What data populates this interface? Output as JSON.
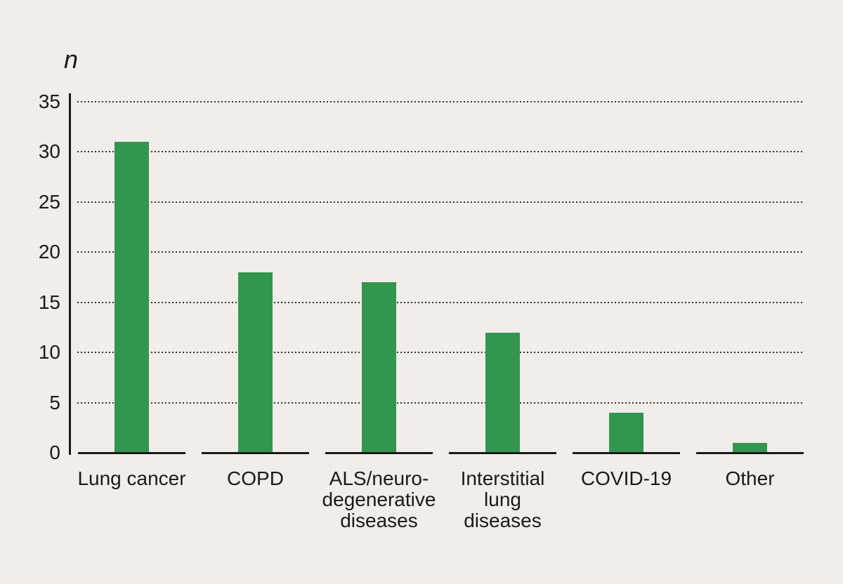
{
  "figure": {
    "background_color": "#f0edea",
    "bar_color": "#33964f",
    "axis_color": "#1a1a1a",
    "grid_color": "#2f2f2f",
    "text_color": "#1a1a1a"
  },
  "chart_data": {
    "type": "bar",
    "title": "",
    "xlabel": "",
    "ylabel": "n",
    "categories": [
      "Lung cancer",
      "COPD",
      "ALS/neuro-\ndegenerative\ndiseases",
      "Interstitial\nlung\ndiseases",
      "COVID-19",
      "Other"
    ],
    "values": [
      31,
      18,
      17,
      12,
      4,
      1
    ],
    "ylim": [
      0,
      35
    ],
    "yticks": [
      0,
      5,
      10,
      15,
      20,
      25,
      30,
      35
    ],
    "grid": "horizontal-dotted",
    "legend": "none",
    "baseline_style": "separate segment per category"
  }
}
